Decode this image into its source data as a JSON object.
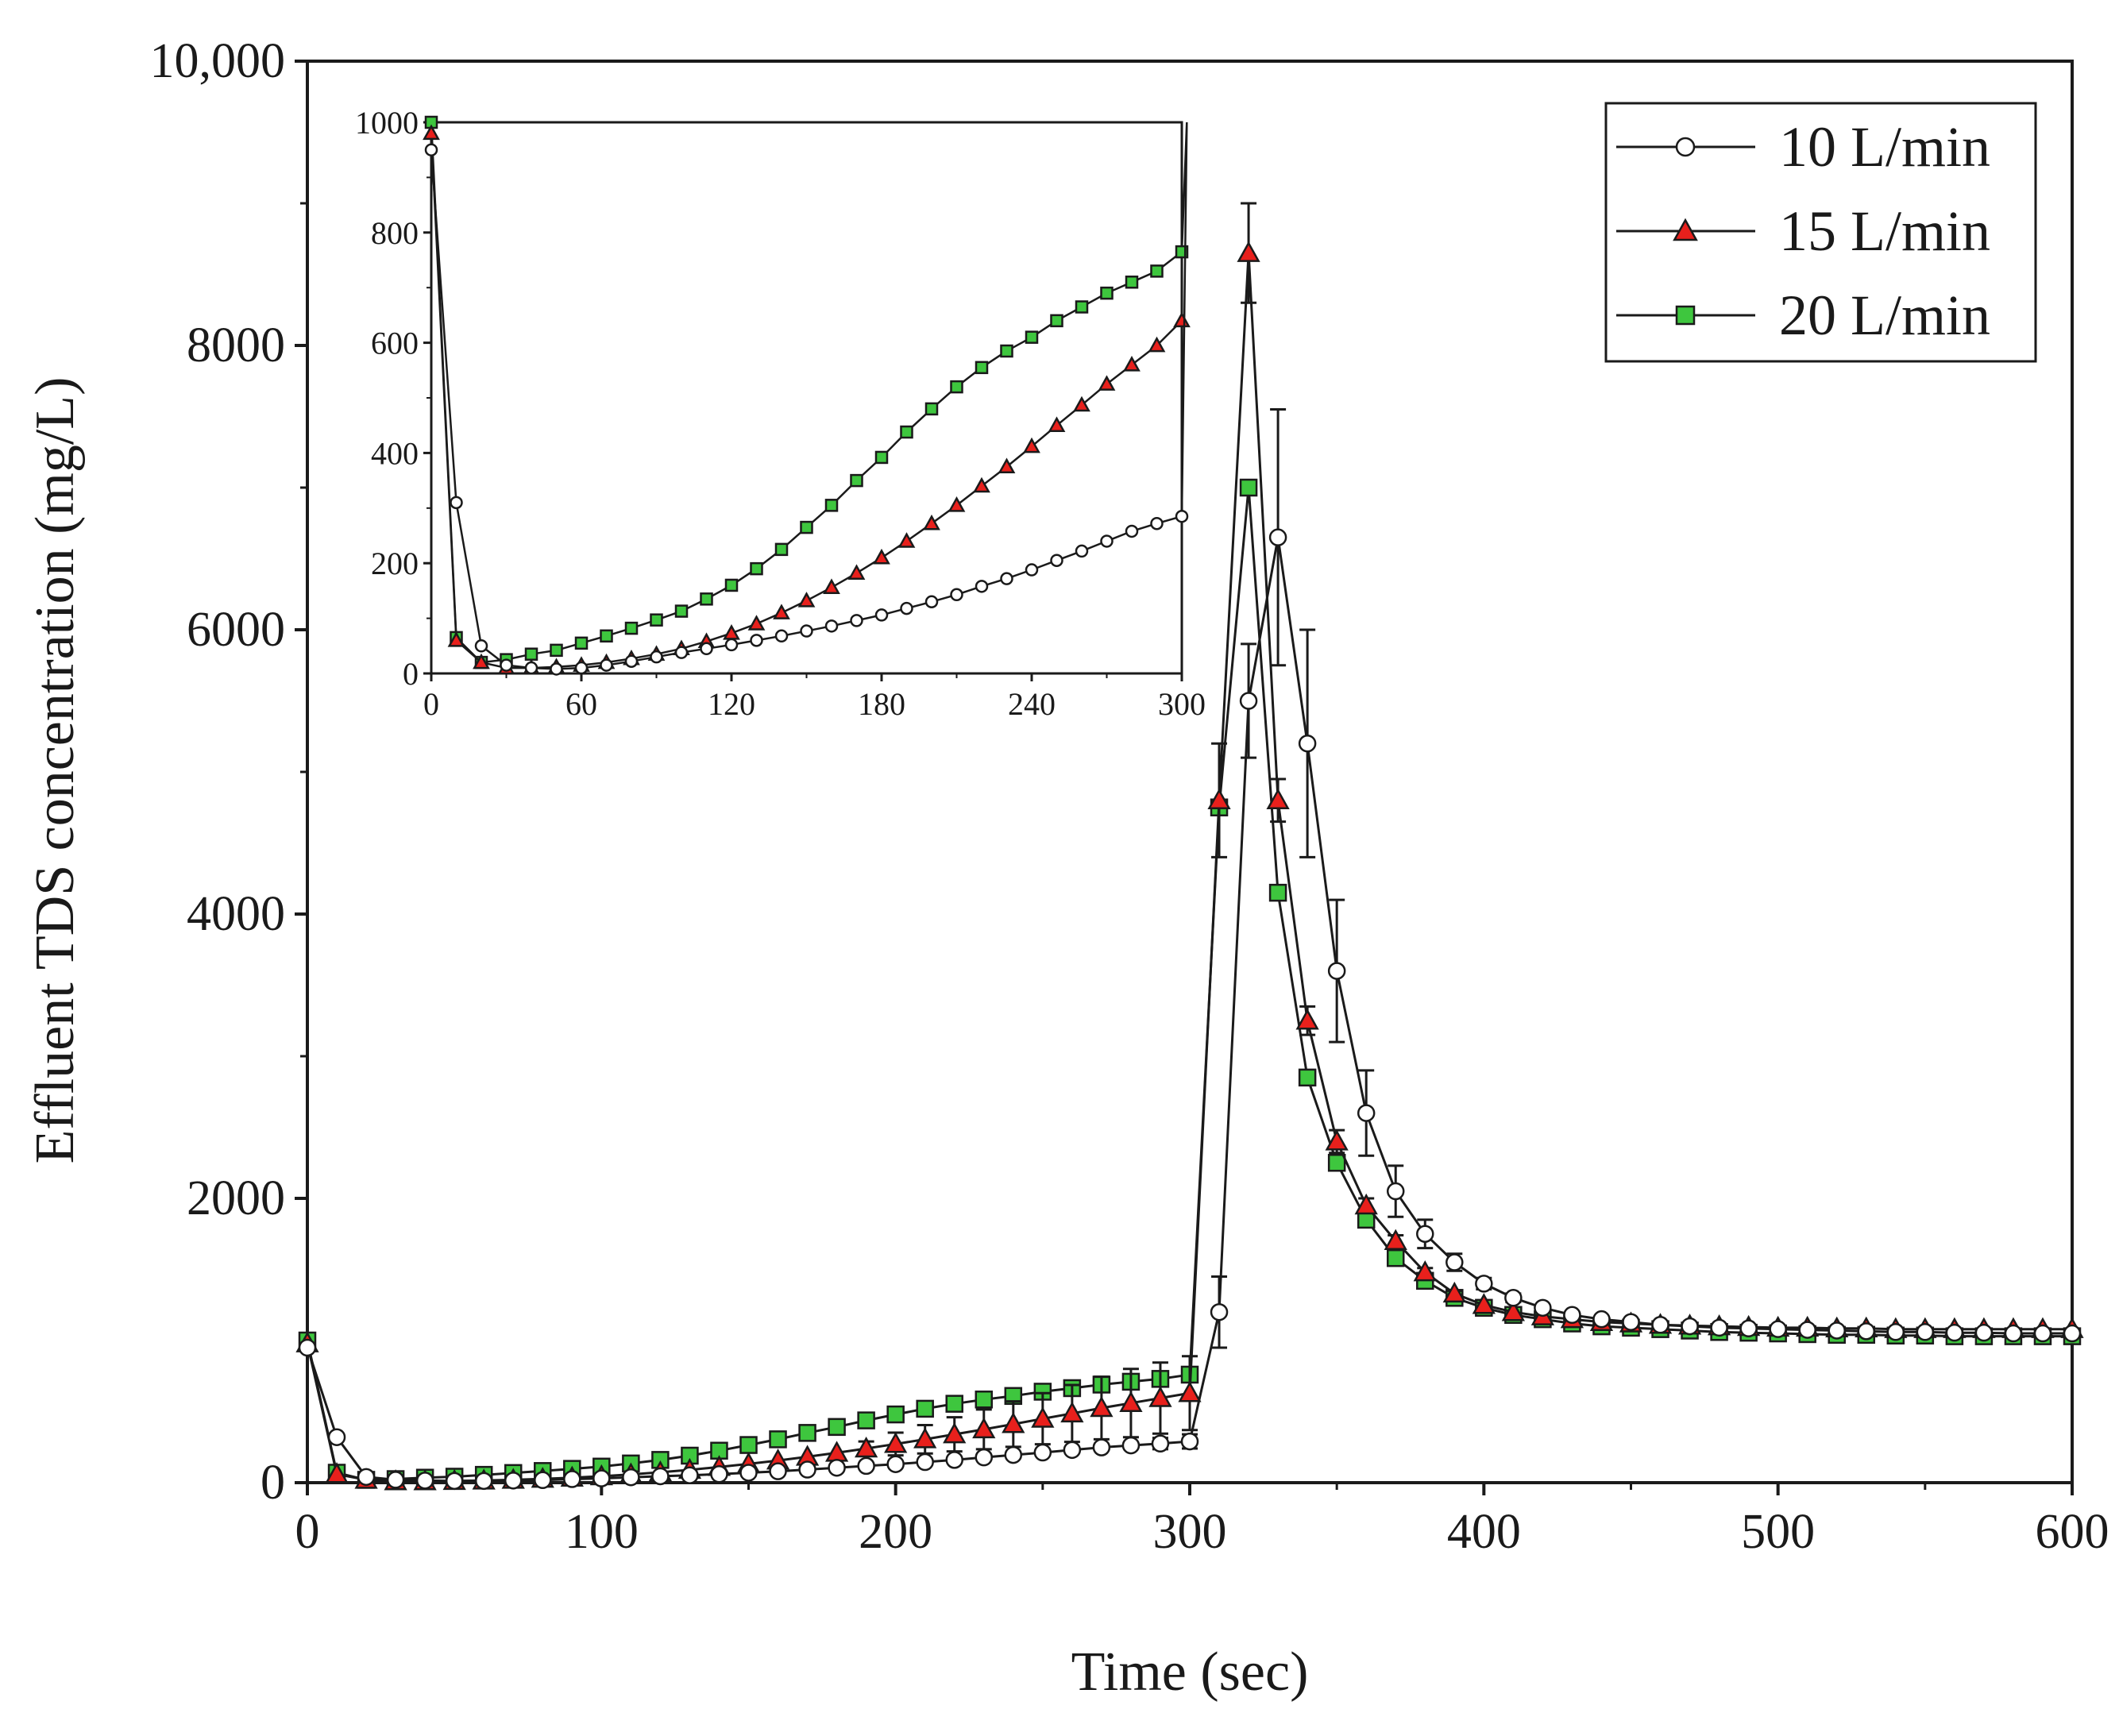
{
  "chart_data": {
    "type": "line",
    "xlabel": "Time (sec)",
    "ylabel": "Effluent TDS concentration (mg/L)",
    "xlim": [
      0,
      600
    ],
    "ylim": [
      0,
      10000
    ],
    "xticks": [
      0,
      100,
      200,
      300,
      400,
      500,
      600
    ],
    "xtick_labels": [
      "0",
      "100",
      "200",
      "300",
      "400",
      "500",
      "600"
    ],
    "yticks": [
      0,
      2000,
      4000,
      6000,
      8000,
      10000
    ],
    "ytick_labels": [
      "0",
      "2000",
      "4000",
      "6000",
      "8000",
      "10,000"
    ],
    "legend_position": "top-right",
    "series": [
      {
        "name": "10 L/min",
        "marker": "circle",
        "color": "#ffffff",
        "x": [
          0,
          10,
          20,
          30,
          40,
          50,
          60,
          70,
          80,
          90,
          100,
          110,
          120,
          130,
          140,
          150,
          160,
          170,
          180,
          190,
          200,
          210,
          220,
          230,
          240,
          250,
          260,
          270,
          280,
          290,
          300,
          310,
          320,
          330,
          340,
          350,
          360,
          370,
          380,
          390,
          400,
          410,
          420,
          430,
          440,
          450,
          460,
          470,
          480,
          490,
          500,
          510,
          520,
          530,
          540,
          550,
          560,
          570,
          580,
          590,
          600
        ],
        "y": [
          950,
          320,
          40,
          20,
          15,
          12,
          12,
          15,
          18,
          25,
          30,
          38,
          45,
          52,
          60,
          70,
          80,
          92,
          105,
          118,
          130,
          145,
          160,
          178,
          195,
          212,
          230,
          248,
          262,
          275,
          290,
          1200,
          5500,
          6650,
          5200,
          3600,
          2600,
          2050,
          1750,
          1550,
          1400,
          1300,
          1230,
          1180,
          1150,
          1130,
          1110,
          1100,
          1090,
          1085,
          1080,
          1075,
          1070,
          1065,
          1060,
          1060,
          1055,
          1055,
          1050,
          1050,
          1050
        ],
        "error": [
          0,
          0,
          0,
          0,
          0,
          0,
          0,
          0,
          0,
          0,
          0,
          0,
          0,
          0,
          0,
          0,
          0,
          0,
          0,
          0,
          0,
          0,
          0,
          0,
          0,
          0,
          0,
          0,
          0,
          40,
          50,
          250,
          400,
          900,
          800,
          500,
          300,
          180,
          100,
          60,
          40,
          30,
          0,
          0,
          0,
          0,
          0,
          0,
          0,
          0,
          0,
          0,
          0,
          0,
          0,
          0,
          0,
          0,
          0,
          0,
          0
        ]
      },
      {
        "name": "15 L/min",
        "marker": "triangle",
        "color": "#e8201c",
        "x": [
          0,
          10,
          20,
          30,
          40,
          50,
          60,
          70,
          80,
          90,
          100,
          110,
          120,
          130,
          140,
          150,
          160,
          170,
          180,
          190,
          200,
          210,
          220,
          230,
          240,
          250,
          260,
          270,
          280,
          290,
          300,
          310,
          320,
          330,
          340,
          350,
          360,
          370,
          380,
          390,
          400,
          410,
          420,
          430,
          440,
          450,
          460,
          470,
          480,
          490,
          500,
          510,
          520,
          530,
          540,
          550,
          560,
          570,
          580,
          590,
          600
        ],
        "y": [
          980,
          60,
          20,
          10,
          10,
          12,
          15,
          20,
          27,
          35,
          45,
          58,
          73,
          90,
          110,
          132,
          156,
          182,
          210,
          240,
          272,
          305,
          340,
          375,
          412,
          450,
          487,
          525,
          560,
          595,
          630,
          4800,
          8650,
          4800,
          3250,
          2400,
          1950,
          1700,
          1480,
          1330,
          1250,
          1200,
          1170,
          1150,
          1130,
          1120,
          1110,
          1105,
          1100,
          1095,
          1090,
          1090,
          1085,
          1085,
          1080,
          1080,
          1080,
          1080,
          1080,
          1080,
          1080
        ],
        "error": [
          0,
          0,
          0,
          0,
          0,
          0,
          0,
          0,
          0,
          0,
          0,
          0,
          0,
          0,
          0,
          0,
          0,
          0,
          0,
          50,
          80,
          100,
          120,
          140,
          160,
          180,
          200,
          220,
          240,
          250,
          260,
          400,
          350,
          150,
          100,
          80,
          50,
          40,
          30,
          20,
          0,
          0,
          0,
          0,
          0,
          0,
          0,
          0,
          0,
          0,
          0,
          0,
          0,
          0,
          0,
          0,
          0,
          0,
          0,
          0,
          0
        ]
      },
      {
        "name": "20 L/min",
        "marker": "square",
        "color": "#3ec63e",
        "x": [
          0,
          10,
          20,
          30,
          40,
          50,
          60,
          70,
          80,
          90,
          100,
          110,
          120,
          130,
          140,
          150,
          160,
          170,
          180,
          190,
          200,
          210,
          220,
          230,
          240,
          250,
          260,
          270,
          280,
          290,
          300,
          310,
          320,
          330,
          340,
          350,
          360,
          370,
          380,
          390,
          400,
          410,
          420,
          430,
          440,
          450,
          460,
          470,
          480,
          490,
          500,
          510,
          520,
          530,
          540,
          550,
          560,
          570,
          580,
          590,
          600
        ],
        "y": [
          1000,
          70,
          20,
          25,
          35,
          42,
          55,
          68,
          82,
          97,
          113,
          135,
          160,
          190,
          225,
          265,
          305,
          350,
          392,
          438,
          480,
          520,
          555,
          585,
          610,
          640,
          665,
          690,
          710,
          730,
          760,
          4750,
          7000,
          4150,
          2850,
          2250,
          1850,
          1580,
          1420,
          1300,
          1230,
          1180,
          1150,
          1120,
          1100,
          1090,
          1080,
          1070,
          1060,
          1055,
          1050,
          1045,
          1040,
          1040,
          1035,
          1035,
          1030,
          1030,
          1030,
          1030,
          1030
        ],
        "error": [
          0,
          0,
          0,
          0,
          0,
          0,
          0,
          0,
          0,
          0,
          0,
          0,
          0,
          0,
          0,
          0,
          0,
          0,
          0,
          0,
          0,
          0,
          0,
          0,
          0,
          0,
          0,
          0,
          0,
          0,
          0,
          0,
          0,
          0,
          0,
          0,
          0,
          0,
          0,
          0,
          0,
          0,
          0,
          0,
          0,
          0,
          0,
          0,
          0,
          0,
          0,
          0,
          0,
          0,
          0,
          0,
          0,
          0,
          0,
          0,
          0
        ]
      }
    ],
    "inset": {
      "xlim": [
        0,
        300
      ],
      "ylim": [
        0,
        1000
      ],
      "xticks": [
        0,
        60,
        120,
        180,
        240,
        300
      ],
      "xtick_labels": [
        "0",
        "60",
        "120",
        "180",
        "240",
        "300"
      ],
      "yticks": [
        0,
        200,
        400,
        600,
        800,
        1000
      ],
      "ytick_labels": [
        "0",
        "200",
        "400",
        "600",
        "800",
        "1000"
      ],
      "series": [
        {
          "name": "10 L/min",
          "x": [
            0,
            10,
            20,
            30,
            40,
            50,
            60,
            70,
            80,
            90,
            100,
            110,
            120,
            130,
            140,
            150,
            160,
            170,
            180,
            190,
            200,
            210,
            220,
            230,
            240,
            250,
            260,
            270,
            280,
            290,
            300,
            302
          ],
          "y": [
            950,
            310,
            50,
            15,
            10,
            8,
            10,
            15,
            22,
            30,
            38,
            45,
            52,
            60,
            68,
            77,
            86,
            96,
            106,
            118,
            130,
            143,
            158,
            172,
            188,
            205,
            222,
            240,
            258,
            272,
            285,
            1000
          ]
        },
        {
          "name": "15 L/min",
          "x": [
            0,
            10,
            20,
            30,
            40,
            50,
            60,
            70,
            80,
            90,
            100,
            110,
            120,
            130,
            140,
            150,
            160,
            170,
            180,
            190,
            200,
            210,
            220,
            230,
            240,
            250,
            260,
            270,
            280,
            290,
            300
          ],
          "y": [
            980,
            60,
            20,
            10,
            10,
            12,
            15,
            20,
            27,
            35,
            45,
            58,
            73,
            90,
            110,
            132,
            156,
            182,
            210,
            240,
            272,
            305,
            340,
            375,
            412,
            450,
            487,
            525,
            560,
            595,
            640
          ]
        },
        {
          "name": "20 L/min",
          "x": [
            0,
            10,
            20,
            30,
            40,
            50,
            60,
            70,
            80,
            90,
            100,
            110,
            120,
            130,
            140,
            150,
            160,
            170,
            180,
            190,
            200,
            210,
            220,
            230,
            240,
            250,
            260,
            270,
            280,
            290,
            300,
            302
          ],
          "y": [
            1000,
            65,
            20,
            25,
            35,
            42,
            55,
            68,
            82,
            97,
            113,
            135,
            160,
            190,
            225,
            265,
            305,
            350,
            392,
            438,
            480,
            520,
            555,
            585,
            610,
            640,
            665,
            690,
            710,
            730,
            765,
            1000
          ]
        }
      ]
    }
  }
}
